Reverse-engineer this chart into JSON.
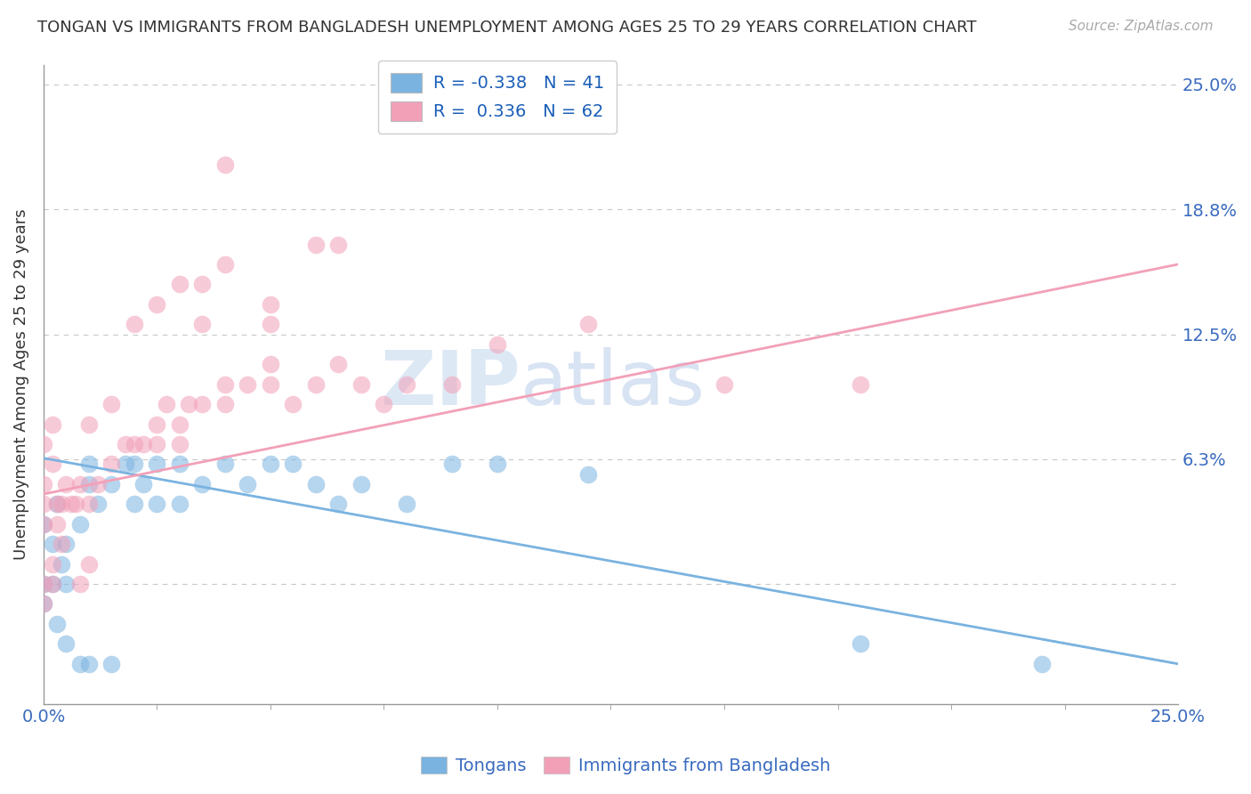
{
  "title": "TONGAN VS IMMIGRANTS FROM BANGLADESH UNEMPLOYMENT AMONG AGES 25 TO 29 YEARS CORRELATION CHART",
  "source_text": "Source: ZipAtlas.com",
  "ylabel": "Unemployment Among Ages 25 to 29 years",
  "xlabel_tongans": "Tongans",
  "xlabel_bangladesh": "Immigrants from Bangladesh",
  "xlim": [
    0.0,
    0.25
  ],
  "ylim": [
    -0.06,
    0.26
  ],
  "yticks": [
    0.0,
    0.0625,
    0.125,
    0.1875,
    0.25
  ],
  "ytick_labels": [
    "",
    "6.3%",
    "12.5%",
    "18.8%",
    "25.0%"
  ],
  "xticks": [
    0.0,
    0.25
  ],
  "xtick_labels": [
    "0.0%",
    "25.0%"
  ],
  "grid_color": "#c8c8c8",
  "background_color": "#ffffff",
  "blue_color": "#7ab3e0",
  "pink_color": "#f2a0b8",
  "R_blue": -0.338,
  "N_blue": 41,
  "R_pink": 0.336,
  "N_pink": 62,
  "legend_R_color": "#1a5eb8",
  "watermark_color": "#dde8f5",
  "title_color": "#333333",
  "axis_label_color": "#333333",
  "tick_color": "#3a6bbf",
  "right_tick_color": "#3a6bbf",
  "blue_trend": [
    0.063,
    -0.04
  ],
  "pink_trend": [
    0.045,
    0.16
  ],
  "blue_scatter": [
    [
      0.003,
      0.04
    ],
    [
      0.005,
      0.02
    ],
    [
      0.008,
      0.03
    ],
    [
      0.01,
      0.05
    ],
    [
      0.01,
      0.06
    ],
    [
      0.012,
      0.04
    ],
    [
      0.015,
      0.05
    ],
    [
      0.018,
      0.06
    ],
    [
      0.02,
      0.04
    ],
    [
      0.02,
      0.06
    ],
    [
      0.022,
      0.05
    ],
    [
      0.025,
      0.06
    ],
    [
      0.025,
      0.04
    ],
    [
      0.03,
      0.06
    ],
    [
      0.03,
      0.04
    ],
    [
      0.035,
      0.05
    ],
    [
      0.04,
      0.06
    ],
    [
      0.045,
      0.05
    ],
    [
      0.05,
      0.06
    ],
    [
      0.055,
      0.06
    ],
    [
      0.06,
      0.05
    ],
    [
      0.065,
      0.04
    ],
    [
      0.07,
      0.05
    ],
    [
      0.08,
      0.04
    ],
    [
      0.09,
      0.06
    ],
    [
      0.1,
      0.06
    ],
    [
      0.12,
      0.055
    ],
    [
      0.0,
      0.03
    ],
    [
      0.002,
      0.02
    ],
    [
      0.004,
      0.01
    ],
    [
      0.0,
      0.0
    ],
    [
      0.002,
      0.0
    ],
    [
      0.005,
      0.0
    ],
    [
      0.0,
      -0.01
    ],
    [
      0.003,
      -0.02
    ],
    [
      0.005,
      -0.03
    ],
    [
      0.008,
      -0.04
    ],
    [
      0.01,
      -0.04
    ],
    [
      0.015,
      -0.04
    ],
    [
      0.18,
      -0.03
    ],
    [
      0.22,
      -0.04
    ]
  ],
  "pink_scatter": [
    [
      0.0,
      0.04
    ],
    [
      0.003,
      0.04
    ],
    [
      0.005,
      0.05
    ],
    [
      0.007,
      0.04
    ],
    [
      0.008,
      0.05
    ],
    [
      0.01,
      0.04
    ],
    [
      0.012,
      0.05
    ],
    [
      0.015,
      0.06
    ],
    [
      0.018,
      0.07
    ],
    [
      0.02,
      0.07
    ],
    [
      0.022,
      0.07
    ],
    [
      0.025,
      0.08
    ],
    [
      0.025,
      0.07
    ],
    [
      0.027,
      0.09
    ],
    [
      0.03,
      0.08
    ],
    [
      0.03,
      0.07
    ],
    [
      0.032,
      0.09
    ],
    [
      0.035,
      0.09
    ],
    [
      0.04,
      0.09
    ],
    [
      0.04,
      0.1
    ],
    [
      0.045,
      0.1
    ],
    [
      0.05,
      0.1
    ],
    [
      0.05,
      0.11
    ],
    [
      0.055,
      0.09
    ],
    [
      0.06,
      0.1
    ],
    [
      0.065,
      0.11
    ],
    [
      0.07,
      0.1
    ],
    [
      0.075,
      0.09
    ],
    [
      0.08,
      0.1
    ],
    [
      0.09,
      0.1
    ],
    [
      0.0,
      0.05
    ],
    [
      0.002,
      0.06
    ],
    [
      0.004,
      0.04
    ],
    [
      0.0,
      0.03
    ],
    [
      0.003,
      0.03
    ],
    [
      0.006,
      0.04
    ],
    [
      0.0,
      0.07
    ],
    [
      0.002,
      0.08
    ],
    [
      0.01,
      0.08
    ],
    [
      0.015,
      0.09
    ],
    [
      0.0,
      0.0
    ],
    [
      0.002,
      0.01
    ],
    [
      0.004,
      0.02
    ],
    [
      0.0,
      -0.01
    ],
    [
      0.002,
      0.0
    ],
    [
      0.008,
      0.0
    ],
    [
      0.01,
      0.01
    ],
    [
      0.05,
      0.13
    ],
    [
      0.05,
      0.14
    ],
    [
      0.035,
      0.15
    ],
    [
      0.04,
      0.16
    ],
    [
      0.04,
      0.21
    ],
    [
      0.06,
      0.17
    ],
    [
      0.065,
      0.17
    ],
    [
      0.1,
      0.12
    ],
    [
      0.12,
      0.13
    ],
    [
      0.15,
      0.1
    ],
    [
      0.18,
      0.1
    ],
    [
      0.02,
      0.13
    ],
    [
      0.025,
      0.14
    ],
    [
      0.03,
      0.15
    ],
    [
      0.035,
      0.13
    ]
  ]
}
